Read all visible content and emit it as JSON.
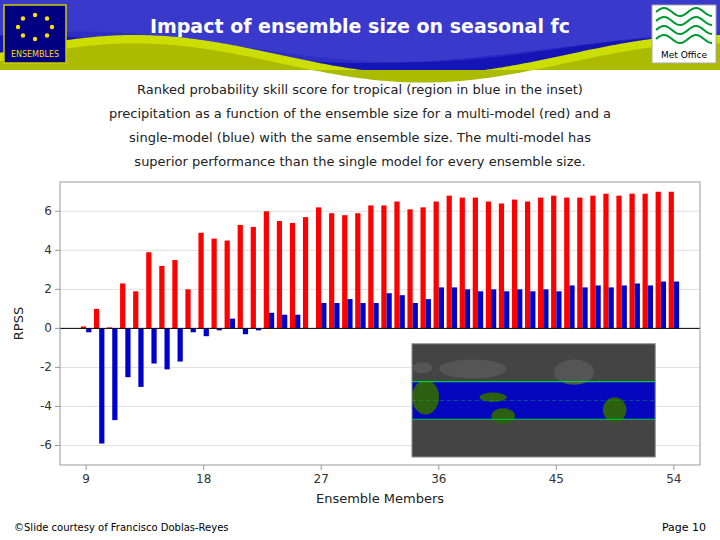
{
  "chart_data": {
    "type": "bar",
    "title": "Impact of ensemble size on seasonal fc",
    "subtitle": [
      "Ranked probability skill score for tropical (region in blue in the inset)",
      "precipitation as a function of the ensemble size for a multi-model (red) and a",
      "single-model (blue) with the same ensemble size. The multi-model has",
      "superior performance than the single model for every ensemble size."
    ],
    "x_label": "Ensemble Members",
    "y_label": "RPSS",
    "annotations": [
      "©Slide courtesy of Francisco Doblas-Reyes",
      "Page 10",
      "ENSEMBLES",
      "Met Office"
    ],
    "x": [
      9,
      10,
      11,
      12,
      13,
      14,
      15,
      16,
      17,
      18,
      19,
      20,
      21,
      22,
      23,
      24,
      25,
      26,
      27,
      28,
      29,
      30,
      31,
      32,
      33,
      34,
      35,
      36,
      37,
      38,
      39,
      40,
      41,
      42,
      43,
      44,
      45,
      46,
      47,
      48,
      49,
      50,
      51,
      52,
      53,
      54
    ],
    "series": [
      {
        "color": "#ff0000",
        "values": [
          0.1,
          1.0,
          0.05,
          2.3,
          1.9,
          3.9,
          3.2,
          3.5,
          2.0,
          4.9,
          4.6,
          4.5,
          5.3,
          5.2,
          6.0,
          5.5,
          5.4,
          5.7,
          6.2,
          5.9,
          5.8,
          5.9,
          6.3,
          6.3,
          6.5,
          6.1,
          6.2,
          6.5,
          6.8,
          6.7,
          6.7,
          6.5,
          6.4,
          6.6,
          6.5,
          6.7,
          6.8,
          6.7,
          6.7,
          6.8,
          6.9,
          6.8,
          6.9,
          6.9,
          7.0,
          7.0
        ]
      },
      {
        "color": "#0000cc",
        "values": [
          -0.2,
          -5.9,
          -4.7,
          -2.5,
          -3.0,
          -1.8,
          -2.1,
          -1.7,
          -0.2,
          -0.4,
          -0.1,
          0.5,
          -0.3,
          -0.1,
          0.8,
          0.7,
          0.7,
          0.0,
          1.3,
          1.3,
          1.5,
          1.3,
          1.3,
          1.8,
          1.7,
          1.3,
          1.5,
          2.1,
          2.1,
          2.0,
          1.9,
          2.0,
          1.9,
          2.0,
          1.9,
          2.0,
          1.9,
          2.2,
          2.1,
          2.2,
          2.1,
          2.2,
          2.3,
          2.2,
          2.4,
          2.4
        ]
      }
    ],
    "xlim": [
      7,
      56
    ],
    "ylim": [
      -7,
      7.5
    ],
    "xticks": [
      9,
      18,
      27,
      36,
      45,
      54
    ],
    "yticks": [
      -6,
      -4,
      -2,
      0,
      2,
      4,
      6
    ],
    "grid": true
  }
}
